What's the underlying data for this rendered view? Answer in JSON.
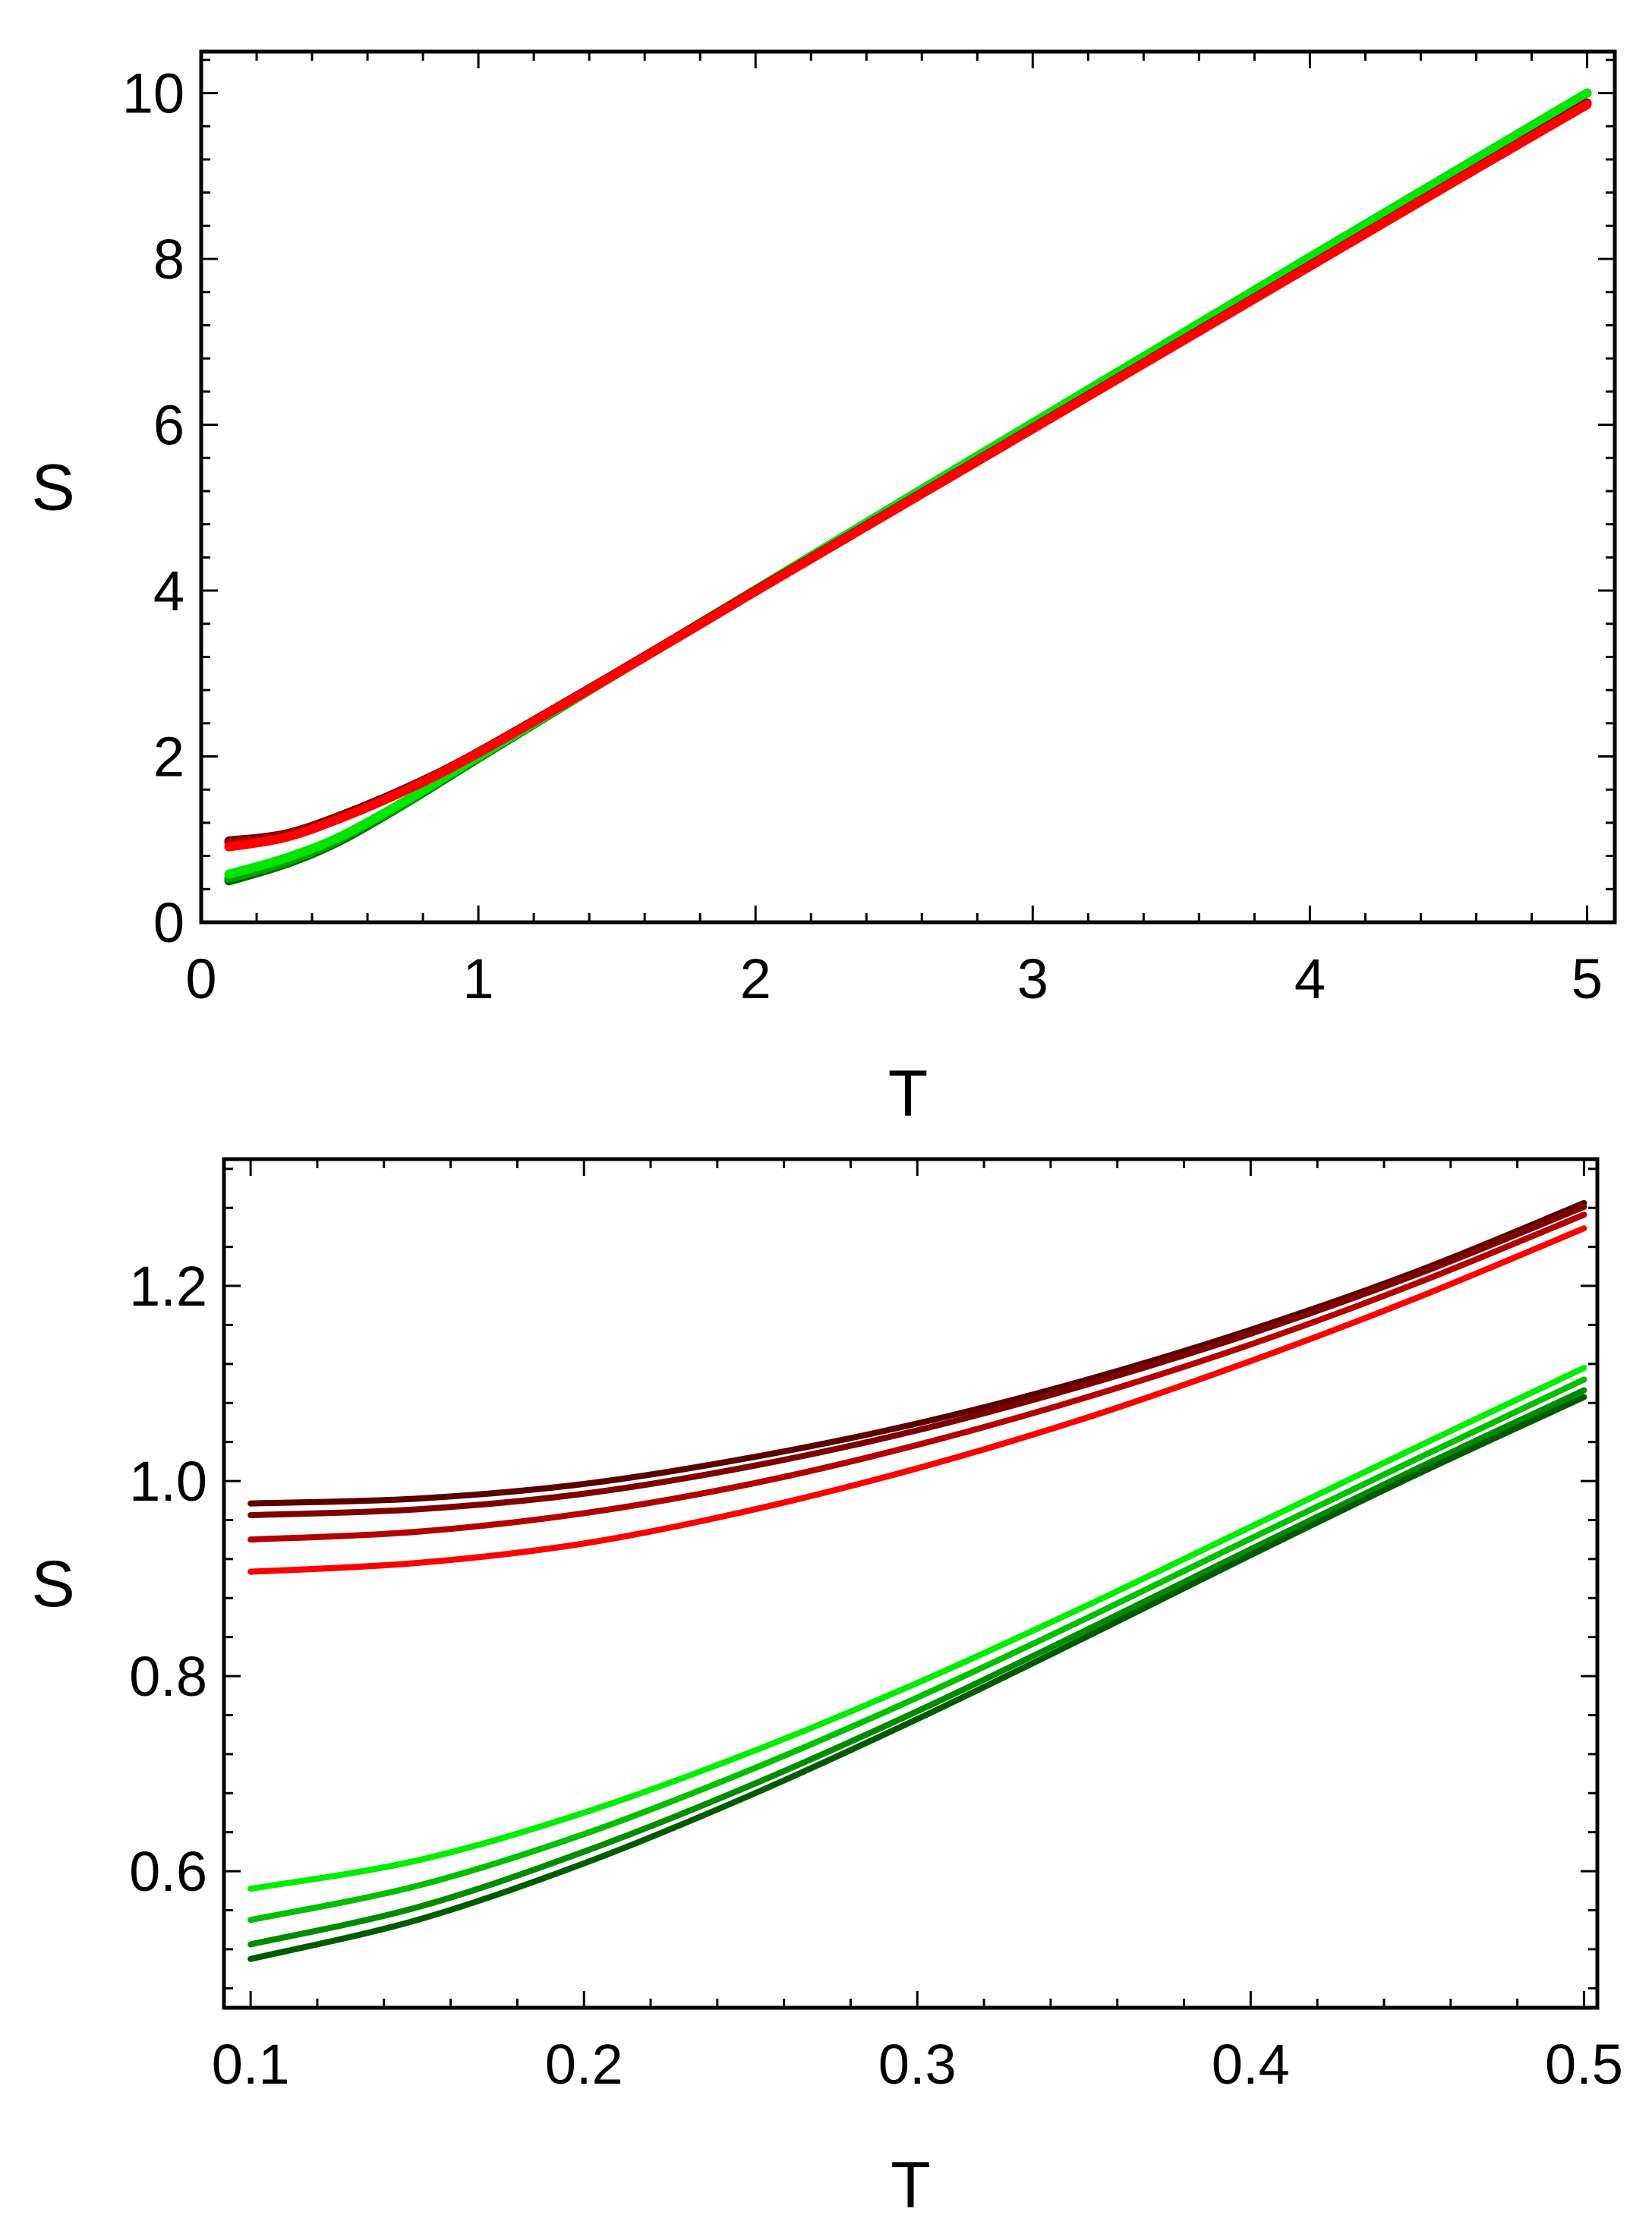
{
  "chart_data": [
    {
      "type": "line",
      "xlabel": "T",
      "ylabel": "S",
      "xlim": [
        0,
        5.1
      ],
      "ylim": [
        0,
        10.5
      ],
      "x_ticks": [
        0,
        1,
        2,
        3,
        4,
        5
      ],
      "x_tick_labels": [
        "0",
        "1",
        "2",
        "3",
        "4",
        "5"
      ],
      "y_ticks": [
        0,
        2,
        4,
        6,
        8,
        10
      ],
      "y_tick_labels": [
        "0",
        "2",
        "4",
        "6",
        "8",
        "10"
      ],
      "grid": false,
      "series": [
        {
          "color": "#006400",
          "x": [
            0.1,
            0.3,
            0.5,
            0.75,
            1,
            1.5,
            2,
            2.5,
            3,
            3.5,
            4,
            4.5,
            5
          ],
          "y": [
            0.5,
            0.7,
            0.98,
            1.46,
            1.98,
            3.0,
            4.01,
            5.02,
            6.02,
            7.02,
            8.02,
            9.01,
            10.0
          ]
        },
        {
          "color": "#00a000",
          "x": [
            0.1,
            0.3,
            0.5,
            0.75,
            1,
            1.5,
            2,
            2.5,
            3,
            3.5,
            4,
            4.5,
            5
          ],
          "y": [
            0.53,
            0.72,
            1.0,
            1.47,
            1.99,
            3.0,
            4.01,
            5.02,
            6.02,
            7.02,
            8.02,
            9.01,
            10.0
          ]
        },
        {
          "color": "#00e600",
          "x": [
            0.1,
            0.3,
            0.5,
            0.75,
            1,
            1.5,
            2,
            2.5,
            3,
            3.5,
            4,
            4.5,
            5
          ],
          "y": [
            0.58,
            0.77,
            1.03,
            1.49,
            2.0,
            3.0,
            4.01,
            5.02,
            6.02,
            7.02,
            8.02,
            9.01,
            10.0
          ]
        },
        {
          "color": "#5a0000",
          "x": [
            0.1,
            0.3,
            0.5,
            0.75,
            1,
            1.5,
            2,
            2.5,
            3,
            3.5,
            4,
            4.5,
            5
          ],
          "y": [
            0.98,
            1.06,
            1.28,
            1.63,
            2.05,
            3.01,
            4.0,
            4.98,
            5.96,
            6.94,
            7.92,
            8.9,
            9.88
          ]
        },
        {
          "color": "#a00000",
          "x": [
            0.1,
            0.3,
            0.5,
            0.75,
            1,
            1.5,
            2,
            2.5,
            3,
            3.5,
            4,
            4.5,
            5
          ],
          "y": [
            0.96,
            1.05,
            1.27,
            1.62,
            2.05,
            3.01,
            4.0,
            4.98,
            5.96,
            6.94,
            7.92,
            8.9,
            9.87
          ]
        },
        {
          "color": "#ff0000",
          "x": [
            0.1,
            0.3,
            0.5,
            0.75,
            1,
            1.5,
            2,
            2.5,
            3,
            3.5,
            4,
            4.5,
            5
          ],
          "y": [
            0.91,
            1.02,
            1.25,
            1.61,
            2.04,
            3.0,
            3.99,
            4.97,
            5.95,
            6.93,
            7.91,
            8.89,
            9.86
          ]
        }
      ]
    },
    {
      "type": "line",
      "xlabel": "T",
      "ylabel": "S",
      "xlim": [
        0.092,
        0.504
      ],
      "ylim": [
        0.46,
        1.33
      ],
      "x_ticks": [
        0.1,
        0.2,
        0.3,
        0.4,
        0.5
      ],
      "x_tick_labels": [
        "0.1",
        "0.2",
        "0.3",
        "0.4",
        "0.5"
      ],
      "y_ticks": [
        0.6,
        0.8,
        1.0,
        1.2
      ],
      "y_tick_labels": [
        "0.6",
        "0.8",
        "1.0",
        "1.2"
      ],
      "grid": false,
      "series": [
        {
          "color": "#5a0000",
          "x": [
            0.1,
            0.15,
            0.2,
            0.25,
            0.3,
            0.35,
            0.4,
            0.45,
            0.5
          ],
          "y": [
            0.977,
            0.982,
            0.997,
            1.024,
            1.059,
            1.103,
            1.155,
            1.215,
            1.285
          ]
        },
        {
          "color": "#800000",
          "x": [
            0.1,
            0.15,
            0.2,
            0.25,
            0.3,
            0.35,
            0.4,
            0.45,
            0.5
          ],
          "y": [
            0.965,
            0.971,
            0.987,
            1.015,
            1.052,
            1.098,
            1.151,
            1.212,
            1.281
          ]
        },
        {
          "color": "#b40000",
          "x": [
            0.1,
            0.15,
            0.2,
            0.25,
            0.3,
            0.35,
            0.4,
            0.45,
            0.5
          ],
          "y": [
            0.94,
            0.948,
            0.967,
            0.997,
            1.037,
            1.085,
            1.14,
            1.203,
            1.273
          ]
        },
        {
          "color": "#ff0000",
          "x": [
            0.1,
            0.15,
            0.2,
            0.25,
            0.3,
            0.35,
            0.4,
            0.45,
            0.5
          ],
          "y": [
            0.907,
            0.916,
            0.936,
            0.97,
            1.013,
            1.064,
            1.123,
            1.188,
            1.259
          ]
        },
        {
          "color": "#00ee00",
          "x": [
            0.1,
            0.15,
            0.2,
            0.25,
            0.3,
            0.35,
            0.4,
            0.45,
            0.5
          ],
          "y": [
            0.582,
            0.611,
            0.66,
            0.722,
            0.793,
            0.871,
            0.953,
            1.035,
            1.116
          ]
        },
        {
          "color": "#00c000",
          "x": [
            0.1,
            0.15,
            0.2,
            0.25,
            0.3,
            0.35,
            0.4,
            0.45,
            0.5
          ],
          "y": [
            0.55,
            0.585,
            0.638,
            0.704,
            0.778,
            0.858,
            0.941,
            1.023,
            1.104
          ]
        },
        {
          "color": "#008c00",
          "x": [
            0.1,
            0.15,
            0.2,
            0.25,
            0.3,
            0.35,
            0.4,
            0.45,
            0.5
          ],
          "y": [
            0.525,
            0.563,
            0.62,
            0.688,
            0.764,
            0.846,
            0.93,
            1.013,
            1.093
          ]
        },
        {
          "color": "#005a00",
          "x": [
            0.1,
            0.15,
            0.2,
            0.25,
            0.3,
            0.35,
            0.4,
            0.45,
            0.5
          ],
          "y": [
            0.51,
            0.55,
            0.608,
            0.678,
            0.756,
            0.839,
            0.924,
            1.007,
            1.086
          ]
        }
      ]
    }
  ]
}
